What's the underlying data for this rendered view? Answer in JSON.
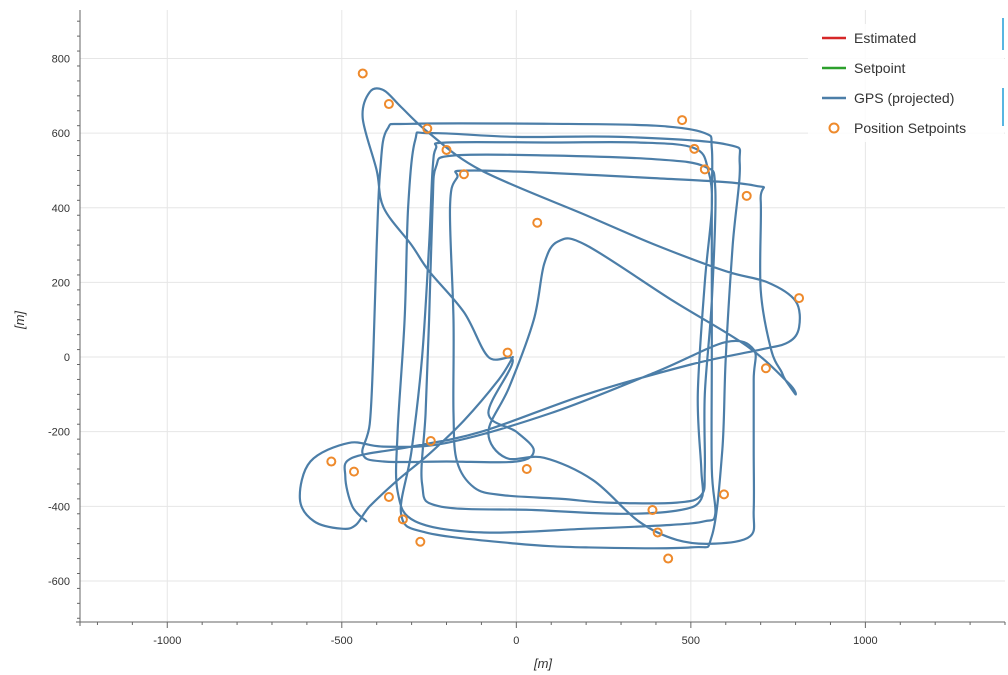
{
  "chart_data": {
    "type": "line",
    "xlabel": "[m]",
    "ylabel": "[m]",
    "xlim": [
      -1250,
      1400
    ],
    "ylim": [
      -710,
      930
    ],
    "xticks": [
      -1000,
      -500,
      0,
      500,
      1000
    ],
    "yticks": [
      -600,
      -400,
      -200,
      0,
      200,
      400,
      600,
      800
    ],
    "xtick_labels": [
      "-1000",
      "-500",
      "0",
      "500",
      "1000"
    ],
    "ytick_labels": [
      "-600",
      "-400",
      "-200",
      "0",
      "200",
      "400",
      "600",
      "800"
    ],
    "grid": true,
    "legend_position": "top-right",
    "legend": [
      {
        "name": "Estimated",
        "kind": "line",
        "color": "#d62728"
      },
      {
        "name": "Setpoint",
        "kind": "line",
        "color": "#2ca02c"
      },
      {
        "name": "GPS (projected)",
        "kind": "line",
        "color": "#4c7ea8"
      },
      {
        "name": "Position Setpoints",
        "kind": "circle",
        "color": "#ee8a2c"
      }
    ],
    "series": [
      {
        "name": "GPS (projected)",
        "color": "#4c7ea8",
        "points": [
          [
            -10,
            0
          ],
          [
            -50,
            -60
          ],
          [
            -150,
            -170
          ],
          [
            -250,
            -260
          ],
          [
            -340,
            -330
          ],
          [
            -420,
            -400
          ],
          [
            -460,
            -450
          ],
          [
            -500,
            -460
          ],
          [
            -580,
            -440
          ],
          [
            -620,
            -380
          ],
          [
            -590,
            -280
          ],
          [
            -480,
            -230
          ],
          [
            -380,
            -240
          ],
          [
            -200,
            -230
          ],
          [
            100,
            -150
          ],
          [
            400,
            -40
          ],
          [
            600,
            40
          ],
          [
            680,
            20
          ],
          [
            680,
            -60
          ],
          [
            680,
            -250
          ],
          [
            680,
            -410
          ],
          [
            670,
            -480
          ],
          [
            570,
            -500
          ],
          [
            460,
            -490
          ],
          [
            350,
            -440
          ],
          [
            220,
            -330
          ],
          [
            80,
            -270
          ],
          [
            -30,
            -270
          ],
          [
            -80,
            -200
          ],
          [
            -20,
            -80
          ],
          [
            50,
            100
          ],
          [
            80,
            250
          ],
          [
            120,
            310
          ],
          [
            200,
            300
          ],
          [
            450,
            150
          ],
          [
            660,
            30
          ],
          [
            780,
            -70
          ],
          [
            800,
            -100
          ],
          [
            770,
            -60
          ],
          [
            760,
            -40
          ],
          [
            730,
            20
          ],
          [
            700,
            180
          ],
          [
            700,
            420
          ],
          [
            680,
            460
          ],
          [
            380,
            480
          ],
          [
            -120,
            500
          ],
          [
            -170,
            480
          ],
          [
            -190,
            400
          ],
          [
            -180,
            100
          ],
          [
            -180,
            -150
          ],
          [
            -170,
            -280
          ],
          [
            -120,
            -350
          ],
          [
            -40,
            -370
          ],
          [
            130,
            -380
          ],
          [
            260,
            -390
          ],
          [
            460,
            -390
          ],
          [
            530,
            -370
          ],
          [
            540,
            -300
          ],
          [
            540,
            -100
          ],
          [
            560,
            150
          ],
          [
            570,
            450
          ],
          [
            540,
            510
          ],
          [
            400,
            530
          ],
          [
            100,
            540
          ],
          [
            -180,
            540
          ],
          [
            -230,
            510
          ],
          [
            -240,
            400
          ],
          [
            -250,
            100
          ],
          [
            -260,
            -150
          ],
          [
            -270,
            -340
          ],
          [
            -220,
            -400
          ],
          [
            50,
            -410
          ],
          [
            300,
            -420
          ],
          [
            470,
            -410
          ],
          [
            530,
            -380
          ],
          [
            530,
            -300
          ],
          [
            520,
            -100
          ],
          [
            540,
            200
          ],
          [
            560,
            400
          ],
          [
            550,
            500
          ],
          [
            510,
            560
          ],
          [
            350,
            575
          ],
          [
            100,
            575
          ],
          [
            -200,
            575
          ],
          [
            -230,
            560
          ],
          [
            -240,
            500
          ],
          [
            -250,
            300
          ],
          [
            -270,
            0
          ],
          [
            -300,
            -250
          ],
          [
            -330,
            -420
          ],
          [
            -260,
            -470
          ],
          [
            0,
            -500
          ],
          [
            200,
            -510
          ],
          [
            500,
            -510
          ],
          [
            560,
            -480
          ],
          [
            590,
            -250
          ],
          [
            600,
            0
          ],
          [
            620,
            300
          ],
          [
            640,
            520
          ],
          [
            600,
            570
          ],
          [
            300,
            590
          ],
          [
            0,
            590
          ],
          [
            -250,
            600
          ],
          [
            -290,
            580
          ],
          [
            -310,
            400
          ],
          [
            -320,
            100
          ],
          [
            -340,
            -200
          ],
          [
            -340,
            -360
          ],
          [
            -290,
            -440
          ],
          [
            -100,
            -470
          ],
          [
            200,
            -460
          ],
          [
            440,
            -450
          ],
          [
            540,
            -440
          ],
          [
            570,
            -420
          ],
          [
            560,
            -300
          ],
          [
            560,
            0
          ],
          [
            560,
            400
          ],
          [
            560,
            560
          ],
          [
            540,
            600
          ],
          [
            400,
            620
          ],
          [
            100,
            625
          ],
          [
            -300,
            625
          ],
          [
            -370,
            610
          ],
          [
            -390,
            500
          ],
          [
            -400,
            300
          ],
          [
            -410,
            0
          ],
          [
            -420,
            -180
          ],
          [
            -440,
            -260
          ],
          [
            -380,
            -280
          ],
          [
            -200,
            -280
          ],
          [
            0,
            -280
          ],
          [
            50,
            -250
          ],
          [
            0,
            -200
          ],
          [
            -80,
            -150
          ],
          [
            -10,
            -10
          ],
          [
            -80,
            0
          ],
          [
            -150,
            120
          ],
          [
            -250,
            230
          ],
          [
            -300,
            300
          ],
          [
            -380,
            400
          ],
          [
            -400,
            500
          ],
          [
            -440,
            640
          ],
          [
            -420,
            710
          ],
          [
            -380,
            715
          ],
          [
            -330,
            670
          ],
          [
            -250,
            600
          ],
          [
            -100,
            500
          ],
          [
            200,
            380
          ],
          [
            400,
            300
          ],
          [
            600,
            230
          ],
          [
            720,
            200
          ],
          [
            800,
            150
          ],
          [
            810,
            80
          ],
          [
            780,
            40
          ],
          [
            700,
            20
          ],
          [
            500,
            -20
          ],
          [
            200,
            -100
          ],
          [
            -100,
            -200
          ],
          [
            -300,
            -240
          ],
          [
            -470,
            -270
          ],
          [
            -490,
            -320
          ],
          [
            -470,
            -400
          ],
          [
            -430,
            -440
          ]
        ]
      }
    ],
    "setpoints": [
      [
        -440,
        760
      ],
      [
        -365,
        678
      ],
      [
        -255,
        612
      ],
      [
        -200,
        555
      ],
      [
        -150,
        490
      ],
      [
        60,
        360
      ],
      [
        475,
        635
      ],
      [
        510,
        558
      ],
      [
        540,
        503
      ],
      [
        660,
        432
      ],
      [
        810,
        158
      ],
      [
        715,
        -30
      ],
      [
        595,
        -368
      ],
      [
        390,
        -410
      ],
      [
        405,
        -470
      ],
      [
        435,
        -540
      ],
      [
        30,
        -300
      ],
      [
        -25,
        12
      ],
      [
        -245,
        -225
      ],
      [
        -365,
        -375
      ],
      [
        -325,
        -435
      ],
      [
        -275,
        -495
      ],
      [
        -465,
        -307
      ],
      [
        -530,
        -280
      ]
    ]
  }
}
